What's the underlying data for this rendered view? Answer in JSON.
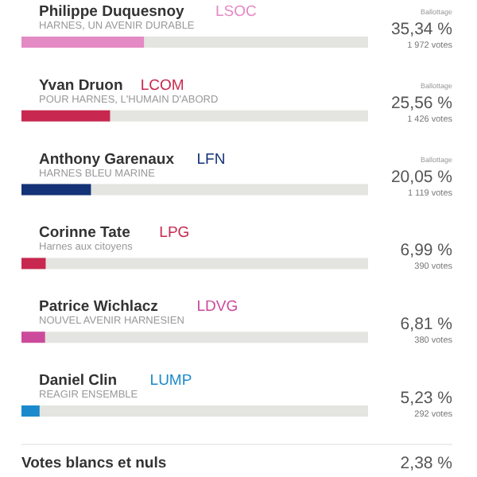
{
  "chart_data": {
    "type": "bar",
    "orientation": "horizontal",
    "categories": [
      "Philippe Duquesnoy LSOC",
      "Yvan Druon LCOM",
      "Anthony Garenaux LFN",
      "Corinne Tate LPG",
      "Patrice Wichlacz LDVG",
      "Daniel Clin LUMP"
    ],
    "values": [
      35.34,
      25.56,
      20.05,
      6.99,
      6.81,
      5.23
    ],
    "colors": [
      "#e48ac4",
      "#c8284f",
      "#143278",
      "#c8284f",
      "#cc4a9c",
      "#1a8acc"
    ],
    "value_labels": [
      "35,34 %",
      "25,56 %",
      "20,05 %",
      "6,99 %",
      "6,81 %",
      "5,23 %"
    ],
    "xlim": [
      0,
      100
    ],
    "tick_labels": false,
    "annotations": [
      "HARNES, UN AVENIR DURABLE",
      "POUR HARNES, L'HUMAIN D'ABORD",
      "HARNES BLEU MARINE",
      "Harnes aux citoyens",
      "NOUVEL AVENIR HARNESIEN",
      "REAGIR ENSEMBLE",
      "1 972 votes",
      "1 426 votes",
      "1 119 votes",
      "390 votes",
      "380 votes",
      "292 votes",
      "Ballottage",
      "Ballottage",
      "Ballottage",
      "Votes blancs et nuls",
      "2,38 %"
    ]
  }
}
